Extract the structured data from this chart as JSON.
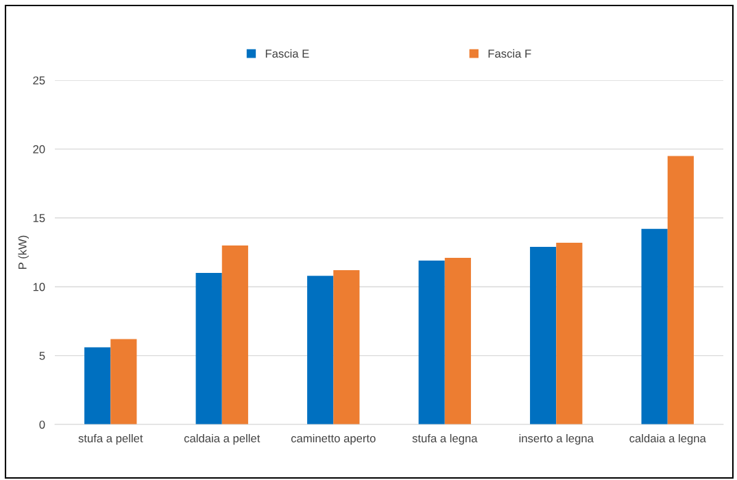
{
  "chart_data": {
    "type": "bar",
    "ylabel": "P (kW)",
    "categories": [
      "stufa a pellet",
      "caldaia a pellet",
      "caminetto aperto",
      "stufa a legna",
      "inserto a legna",
      "caldaia a legna"
    ],
    "series": [
      {
        "name": "Fascia E",
        "color": "#0070c0",
        "values": [
          5.6,
          11.0,
          10.8,
          11.9,
          12.9,
          14.2
        ]
      },
      {
        "name": "Fascia F",
        "color": "#ed7d31",
        "values": [
          6.2,
          13.0,
          11.2,
          12.1,
          13.2,
          19.5
        ]
      }
    ],
    "ylim": [
      0,
      25
    ],
    "yticks": [
      0,
      5,
      10,
      15,
      20,
      25
    ],
    "grid": "y",
    "legend": "top"
  }
}
